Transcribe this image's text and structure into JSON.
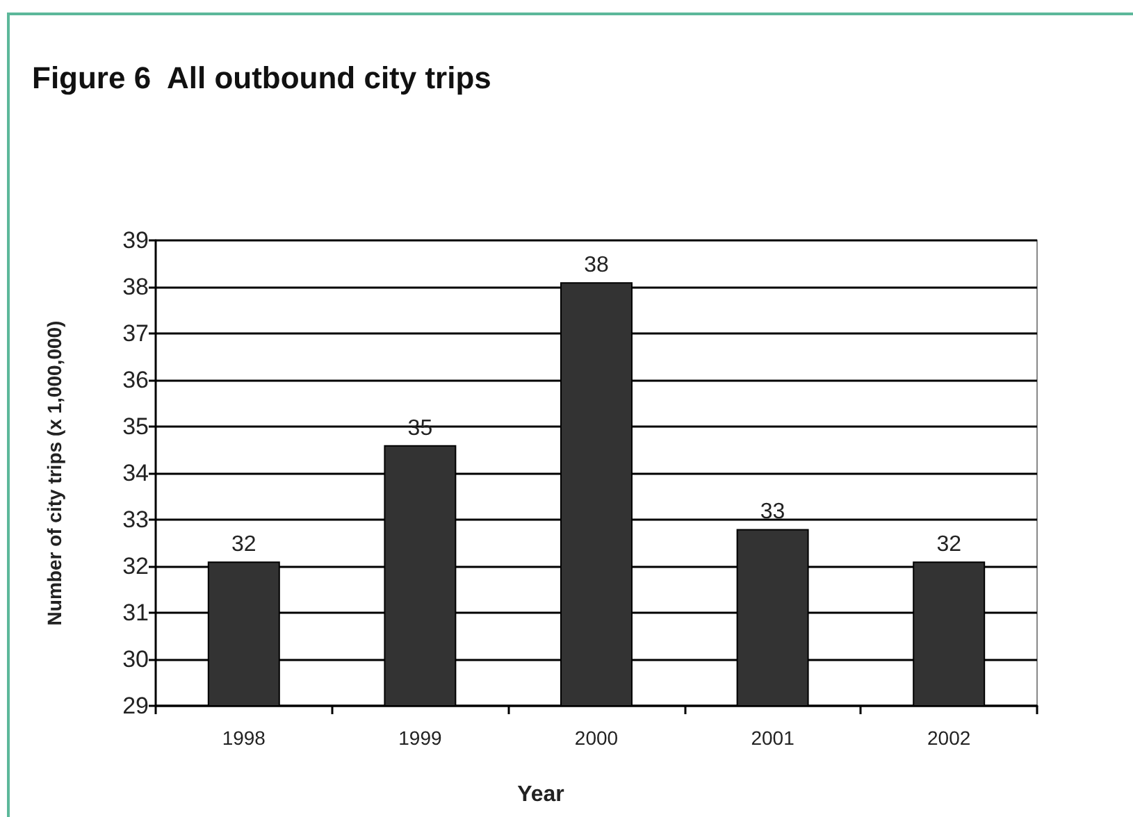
{
  "chart_data": {
    "type": "bar",
    "title": "Figure 6  All outbound city trips",
    "xlabel": "Year",
    "ylabel": "Number of city trips (x 1,000,000)",
    "categories": [
      "1998",
      "1999",
      "2000",
      "2001",
      "2002"
    ],
    "values": [
      32.1,
      34.6,
      38.1,
      32.8,
      32.1
    ],
    "value_labels": [
      "32",
      "35",
      "38",
      "33",
      "32"
    ],
    "color": "#333333",
    "ylim": [
      29,
      39
    ],
    "yticks": [
      29,
      30,
      31,
      32,
      33,
      34,
      35,
      36,
      37,
      38,
      39
    ],
    "grid": "y"
  }
}
